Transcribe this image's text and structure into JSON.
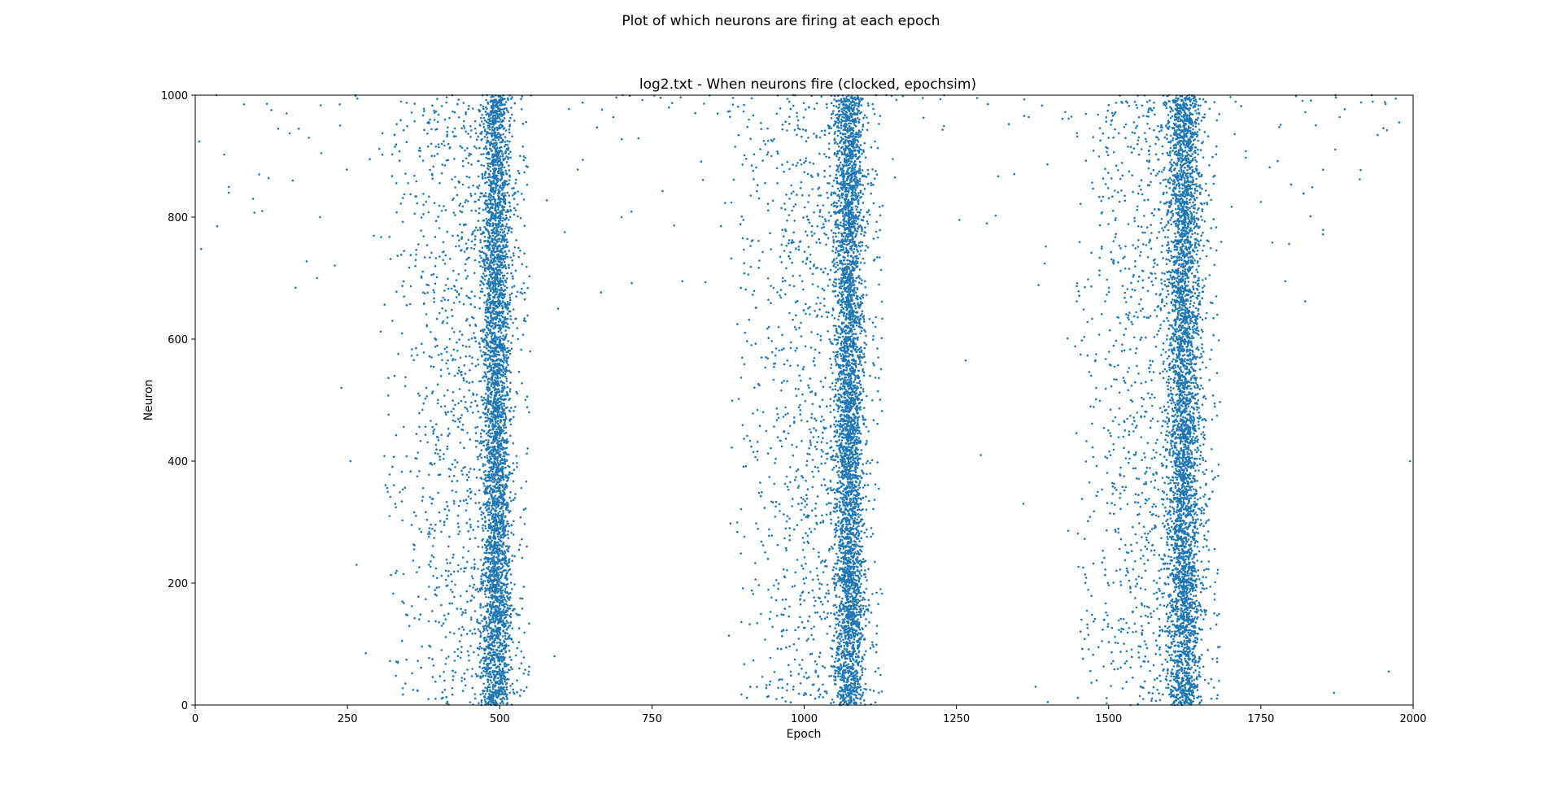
{
  "figure": {
    "suptitle": "Plot of which neurons are firing at each epoch"
  },
  "chart_data": {
    "type": "scatter",
    "title": "log2.txt - When neurons fire (clocked, epochsim)",
    "xlabel": "Epoch",
    "ylabel": "Neuron",
    "xlim": [
      0,
      2000
    ],
    "ylim": [
      0,
      1000
    ],
    "xticks": [
      0,
      250,
      500,
      750,
      1000,
      1250,
      1500,
      1750,
      2000
    ],
    "yticks": [
      0,
      200,
      400,
      600,
      800,
      1000
    ],
    "grid": false,
    "legend": "none",
    "marker_color": "#1f77b4",
    "description_of_series": "Spike raster; dense firing bands centered near epochs 500, 1075 and 1625 with sparse preceding activity",
    "bursts": [
      {
        "center_epoch": 495,
        "core_half_width": 30,
        "ramp_start_epoch": 300,
        "density": "high"
      },
      {
        "center_epoch": 1075,
        "core_half_width": 30,
        "ramp_start_epoch": 870,
        "density": "high"
      },
      {
        "center_epoch": 1625,
        "core_half_width": 35,
        "ramp_start_epoch": 1430,
        "density": "high"
      }
    ],
    "sample_points": [
      {
        "x": 55,
        "y": 840
      },
      {
        "x": 80,
        "y": 985
      },
      {
        "x": 95,
        "y": 830
      },
      {
        "x": 105,
        "y": 870
      },
      {
        "x": 110,
        "y": 810
      },
      {
        "x": 150,
        "y": 970
      },
      {
        "x": 160,
        "y": 860
      },
      {
        "x": 170,
        "y": 945
      },
      {
        "x": 200,
        "y": 700
      },
      {
        "x": 205,
        "y": 800
      },
      {
        "x": 240,
        "y": 520
      },
      {
        "x": 255,
        "y": 400
      },
      {
        "x": 265,
        "y": 230
      },
      {
        "x": 280,
        "y": 85
      },
      {
        "x": 550,
        "y": 580
      },
      {
        "x": 590,
        "y": 80
      },
      {
        "x": 700,
        "y": 800
      },
      {
        "x": 800,
        "y": 695
      },
      {
        "x": 1265,
        "y": 565
      },
      {
        "x": 1290,
        "y": 410
      },
      {
        "x": 1360,
        "y": 330
      },
      {
        "x": 1380,
        "y": 30
      },
      {
        "x": 1400,
        "y": 5
      },
      {
        "x": 1750,
        "y": 825
      },
      {
        "x": 1790,
        "y": 695
      },
      {
        "x": 1870,
        "y": 20
      },
      {
        "x": 1960,
        "y": 55
      },
      {
        "x": 1995,
        "y": 400
      }
    ]
  }
}
